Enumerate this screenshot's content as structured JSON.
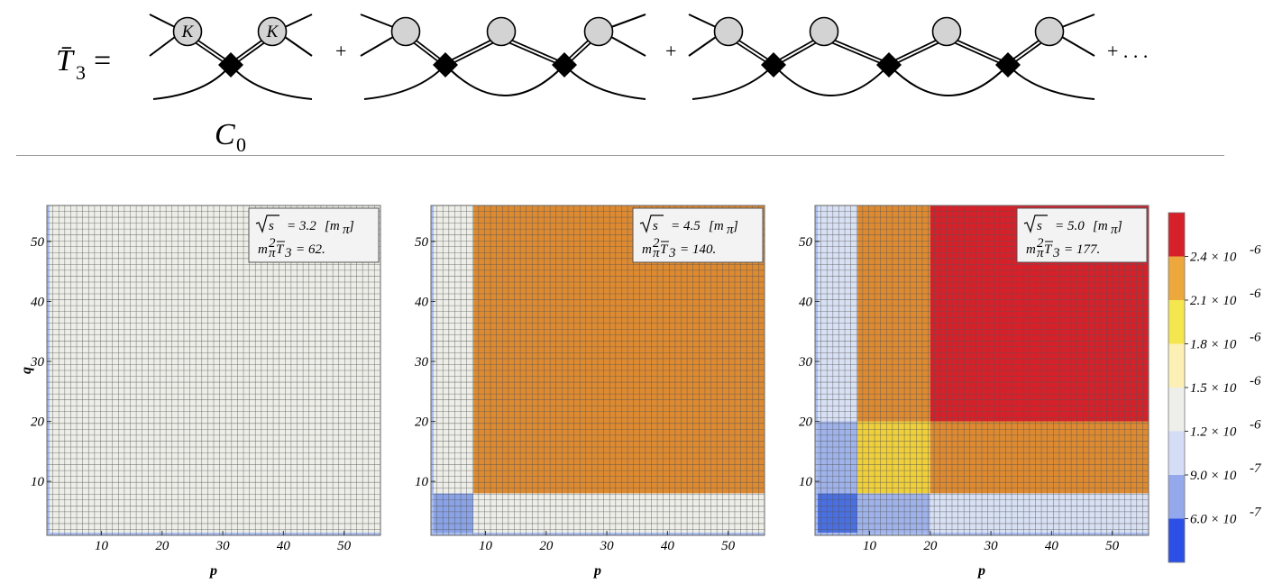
{
  "diagram": {
    "lhs_symbol": "T̄",
    "lhs_subscript": "3",
    "equals": "=",
    "vertex_symbol": "K",
    "coupling_symbol": "C",
    "coupling_subscript": "0",
    "plus": "+",
    "ellipsis": "+ . . ."
  },
  "colors": {
    "grid_line": "#555555",
    "separator": "#9a9a9a"
  },
  "chart_data": [
    {
      "type": "heatmap",
      "xlabel": "p",
      "ylabel": "q",
      "xlim": [
        1,
        56
      ],
      "ylim": [
        1,
        56
      ],
      "x_ticks": [
        10,
        20,
        30,
        40,
        50
      ],
      "y_ticks": [
        10,
        20,
        30,
        40,
        50
      ],
      "grid_cells": 56,
      "annotation": {
        "sqrt_s": "3.2",
        "sqrt_s_unit": "[mπ]",
        "T3_value": "62."
      },
      "regions": [
        {
          "p": [
            1,
            56
          ],
          "q": [
            1,
            56
          ],
          "color": "#eeeee8"
        }
      ]
    },
    {
      "type": "heatmap",
      "xlabel": "p",
      "ylabel": "",
      "xlim": [
        1,
        56
      ],
      "ylim": [
        1,
        56
      ],
      "x_ticks": [
        10,
        20,
        30,
        40,
        50
      ],
      "y_ticks": [
        10,
        20,
        30,
        40,
        50
      ],
      "grid_cells": 56,
      "annotation": {
        "sqrt_s": "4.5",
        "sqrt_s_unit": "[mπ]",
        "T3_value": "140."
      },
      "regions": [
        {
          "p": [
            1,
            8
          ],
          "q": [
            8,
            56
          ],
          "color": "#eeeee8"
        },
        {
          "p": [
            8,
            56
          ],
          "q": [
            8,
            56
          ],
          "color": "#dd8a31"
        },
        {
          "p": [
            1,
            8
          ],
          "q": [
            1,
            8
          ],
          "color": "#8aa3e6"
        },
        {
          "p": [
            8,
            56
          ],
          "q": [
            1,
            8
          ],
          "color": "#eeeee8"
        }
      ]
    },
    {
      "type": "heatmap",
      "xlabel": "p",
      "ylabel": "",
      "xlim": [
        1,
        56
      ],
      "ylim": [
        1,
        56
      ],
      "x_ticks": [
        10,
        20,
        30,
        40,
        50
      ],
      "y_ticks": [
        10,
        20,
        30,
        40,
        50
      ],
      "grid_cells": 56,
      "annotation": {
        "sqrt_s": "5.0",
        "sqrt_s_unit": "[mπ]",
        "T3_value": "177."
      },
      "regions": [
        {
          "p": [
            1,
            8
          ],
          "q": [
            20,
            56
          ],
          "color": "#d8e0f4"
        },
        {
          "p": [
            8,
            20
          ],
          "q": [
            20,
            56
          ],
          "color": "#dd8a31"
        },
        {
          "p": [
            20,
            56
          ],
          "q": [
            20,
            56
          ],
          "color": "#d6202a"
        },
        {
          "p": [
            1,
            8
          ],
          "q": [
            8,
            20
          ],
          "color": "#9fb3ea"
        },
        {
          "p": [
            8,
            20
          ],
          "q": [
            8,
            20
          ],
          "color": "#efcf3a"
        },
        {
          "p": [
            20,
            56
          ],
          "q": [
            8,
            20
          ],
          "color": "#dd8a31"
        },
        {
          "p": [
            1,
            8
          ],
          "q": [
            1,
            8
          ],
          "color": "#4a6fe0"
        },
        {
          "p": [
            8,
            20
          ],
          "q": [
            1,
            8
          ],
          "color": "#9fb3ea"
        },
        {
          "p": [
            20,
            56
          ],
          "q": [
            1,
            8
          ],
          "color": "#d8e0f4"
        }
      ]
    },
    {
      "type": "legend",
      "colorbar": {
        "bands": [
          "#2c50e6",
          "#94a8ec",
          "#d4dcf6",
          "#eeeeea",
          "#fcf0b4",
          "#f4e64e",
          "#eca83c",
          "#d6202a"
        ],
        "labels": [
          {
            "mantissa": "6.0",
            "exponent": "-7"
          },
          {
            "mantissa": "9.0",
            "exponent": "-7"
          },
          {
            "mantissa": "1.2",
            "exponent": "-6"
          },
          {
            "mantissa": "1.5",
            "exponent": "-6"
          },
          {
            "mantissa": "1.8",
            "exponent": "-6"
          },
          {
            "mantissa": "2.1",
            "exponent": "-6"
          },
          {
            "mantissa": "2.4",
            "exponent": "-6"
          }
        ]
      }
    }
  ]
}
